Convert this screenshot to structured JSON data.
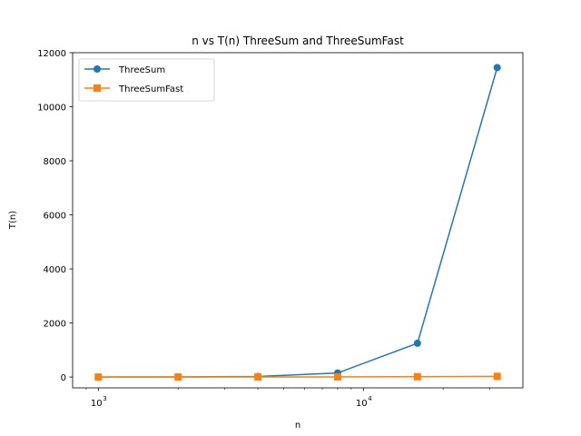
{
  "chart_data": {
    "type": "line",
    "title": "n vs T(n) ThreeSum and ThreeSumFast",
    "xlabel": "n",
    "ylabel": "T(n)",
    "xscale": "log",
    "x": [
      1000,
      2000,
      4000,
      8000,
      16000,
      32000
    ],
    "xlim": [
      800,
      40000
    ],
    "ylim": [
      -400,
      12000
    ],
    "x_ticks": [
      {
        "value": 1000,
        "base": "10",
        "exp": "3"
      },
      {
        "value": 10000,
        "base": "10",
        "exp": "4"
      }
    ],
    "y_ticks": [
      0,
      2000,
      4000,
      6000,
      8000,
      10000,
      12000
    ],
    "y_tick_labels": [
      "0",
      "2000",
      "4000",
      "6000",
      "8000",
      "10000",
      "12000"
    ],
    "grid": false,
    "legend_position": "top-left",
    "series": [
      {
        "name": "ThreeSum",
        "color": "#1f77b4",
        "marker": "circle",
        "values": [
          1,
          4,
          20,
          150,
          1250,
          11450
        ]
      },
      {
        "name": "ThreeSumFast",
        "color": "#ff7f0e",
        "marker": "square",
        "values": [
          0.5,
          1,
          3,
          5,
          12,
          25
        ]
      }
    ]
  }
}
